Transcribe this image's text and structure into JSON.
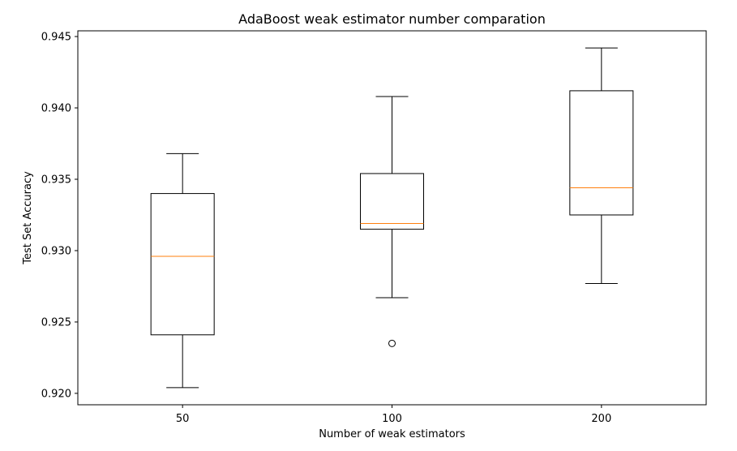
{
  "chart_data": {
    "type": "box",
    "title": "AdaBoost weak estimator number comparation",
    "xlabel": "Number of weak estimators",
    "ylabel": "Test Set Accuracy",
    "ylim": [
      0.9192,
      0.9454
    ],
    "yticks": [
      0.92,
      0.925,
      0.93,
      0.935,
      0.94,
      0.945
    ],
    "ytick_labels": [
      "0.920",
      "0.925",
      "0.930",
      "0.935",
      "0.940",
      "0.945"
    ],
    "grid": false,
    "categories": [
      "50",
      "100",
      "200"
    ],
    "boxes": [
      {
        "category": "50",
        "whisker_low": 0.9204,
        "q1": 0.9241,
        "median": 0.9296,
        "q3": 0.934,
        "whisker_high": 0.9368,
        "outliers": []
      },
      {
        "category": "100",
        "whisker_low": 0.9267,
        "q1": 0.9315,
        "median": 0.9319,
        "q3": 0.9354,
        "whisker_high": 0.9408,
        "outliers": [
          0.9235
        ]
      },
      {
        "category": "200",
        "whisker_low": 0.9277,
        "q1": 0.9325,
        "median": 0.9344,
        "q3": 0.9412,
        "whisker_high": 0.9442,
        "outliers": []
      }
    ],
    "colors": {
      "box": "#000000",
      "median": "#ff7f0e",
      "background": "#ffffff"
    }
  }
}
